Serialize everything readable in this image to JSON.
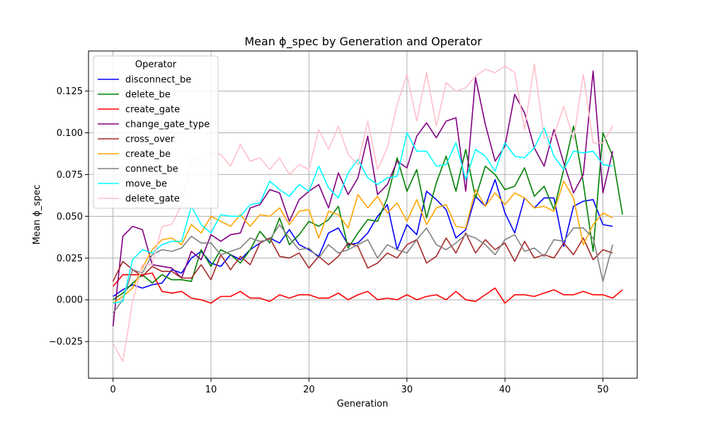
{
  "chart_data": {
    "type": "line",
    "title": "Mean ϕ_spec by Generation and Operator",
    "xlabel": "Generation",
    "ylabel": "Mean ϕ_spec",
    "xlim": [
      -2.5,
      53.5
    ],
    "ylim": [
      -0.047,
      0.149
    ],
    "xticks": [
      0,
      10,
      20,
      30,
      40,
      50
    ],
    "xtick_labels": [
      "0",
      "10",
      "20",
      "30",
      "40",
      "50"
    ],
    "yticks": [
      -0.025,
      0.0,
      0.025,
      0.05,
      0.075,
      0.1,
      0.125
    ],
    "ytick_labels": [
      "−0.025",
      "0.000",
      "0.025",
      "0.050",
      "0.075",
      "0.100",
      "0.125"
    ],
    "grid": true,
    "legend": {
      "title": "Operator",
      "position": "top-left"
    },
    "series": [
      {
        "name": "disconnect_be",
        "color": "#0000ff",
        "values": [
          0.002,
          0.006,
          0.009,
          0.007,
          0.009,
          0.01,
          0.018,
          0.016,
          0.025,
          0.029,
          0.022,
          0.02,
          0.027,
          0.024,
          0.03,
          0.034,
          0.037,
          0.034,
          0.042,
          0.033,
          0.03,
          0.026,
          0.04,
          0.043,
          0.033,
          0.034,
          0.04,
          0.05,
          0.057,
          0.03,
          0.045,
          0.039,
          0.065,
          0.06,
          0.054,
          0.037,
          0.042,
          0.062,
          0.056,
          0.072,
          0.052,
          0.04,
          0.061,
          0.055,
          0.061,
          0.061,
          0.032,
          0.056,
          0.059,
          0.06,
          0.045,
          0.044
        ]
      },
      {
        "name": "delete_be",
        "color": "#008000",
        "values": [
          0.0,
          0.004,
          0.01,
          0.015,
          0.01,
          0.015,
          0.012,
          0.012,
          0.011,
          0.03,
          0.02,
          0.03,
          0.027,
          0.022,
          0.03,
          0.041,
          0.034,
          0.049,
          0.033,
          0.039,
          0.047,
          0.044,
          0.048,
          0.056,
          0.031,
          0.04,
          0.048,
          0.047,
          0.061,
          0.085,
          0.065,
          0.078,
          0.049,
          0.07,
          0.086,
          0.065,
          0.09,
          0.061,
          0.08,
          0.075,
          0.066,
          0.068,
          0.079,
          0.062,
          0.068,
          0.054,
          0.078,
          0.104,
          0.07,
          0.029,
          0.1,
          0.086,
          0.051
        ]
      },
      {
        "name": "create_gate",
        "color": "#ff0000",
        "values": [
          0.008,
          0.015,
          0.015,
          0.015,
          0.016,
          0.005,
          0.004,
          0.005,
          0.001,
          0.0,
          -0.002,
          0.002,
          0.002,
          0.005,
          0.001,
          0.001,
          -0.001,
          0.003,
          0.001,
          0.003,
          0.003,
          0.001,
          0.001,
          0.004,
          0.0,
          0.003,
          0.005,
          0.0,
          0.001,
          0.0,
          0.003,
          0.0,
          0.002,
          0.003,
          0.0,
          0.005,
          0.0,
          -0.001,
          0.003,
          0.007,
          -0.002,
          0.003,
          0.003,
          0.002,
          0.004,
          0.006,
          0.003,
          0.003,
          0.005,
          0.003,
          0.003,
          0.001,
          0.006
        ]
      },
      {
        "name": "change_gate_type",
        "color": "#800080",
        "values": [
          -0.016,
          0.038,
          0.044,
          0.042,
          0.021,
          0.02,
          0.019,
          0.013,
          0.029,
          0.024,
          0.039,
          0.035,
          0.039,
          0.04,
          0.055,
          0.057,
          0.066,
          0.064,
          0.047,
          0.06,
          0.065,
          0.069,
          0.055,
          0.076,
          0.063,
          0.073,
          0.098,
          0.063,
          0.069,
          0.083,
          0.079,
          0.098,
          0.106,
          0.097,
          0.107,
          0.109,
          0.065,
          0.133,
          0.105,
          0.083,
          0.092,
          0.123,
          0.112,
          0.091,
          0.08,
          0.102,
          0.082,
          0.064,
          0.075,
          0.137,
          0.064,
          0.089
        ]
      },
      {
        "name": "cross_over",
        "color": "#a52a2a",
        "values": [
          0.011,
          0.023,
          0.018,
          0.014,
          0.02,
          0.017,
          0.017,
          0.013,
          0.013,
          0.021,
          0.012,
          0.027,
          0.018,
          0.026,
          0.021,
          0.034,
          0.037,
          0.026,
          0.025,
          0.028,
          0.019,
          0.026,
          0.021,
          0.026,
          0.034,
          0.032,
          0.019,
          0.022,
          0.028,
          0.025,
          0.033,
          0.036,
          0.022,
          0.026,
          0.037,
          0.028,
          0.04,
          0.028,
          0.036,
          0.03,
          0.034,
          0.023,
          0.035,
          0.025,
          0.027,
          0.025,
          0.034,
          0.027,
          0.037,
          0.024,
          0.03,
          0.028
        ]
      },
      {
        "name": "create_be",
        "color": "#ffa500",
        "values": [
          -0.002,
          0.002,
          0.007,
          0.019,
          0.03,
          0.036,
          0.037,
          0.033,
          0.045,
          0.04,
          0.05,
          0.047,
          0.044,
          0.051,
          0.044,
          0.051,
          0.05,
          0.055,
          0.045,
          0.053,
          0.054,
          0.037,
          0.053,
          0.051,
          0.043,
          0.063,
          0.055,
          0.062,
          0.052,
          0.058,
          0.047,
          0.06,
          0.045,
          0.055,
          0.057,
          0.044,
          0.043,
          0.066,
          0.056,
          0.064,
          0.057,
          0.064,
          0.061,
          0.055,
          0.056,
          0.053,
          0.071,
          0.061,
          0.033,
          0.045,
          0.052,
          0.049
        ]
      },
      {
        "name": "connect_be",
        "color": "#808080",
        "values": [
          -0.008,
          0.0,
          0.018,
          0.016,
          0.027,
          0.03,
          0.029,
          0.031,
          0.038,
          0.034,
          0.034,
          0.027,
          0.029,
          0.031,
          0.037,
          0.035,
          0.036,
          0.045,
          0.037,
          0.03,
          0.031,
          0.025,
          0.033,
          0.028,
          0.03,
          0.033,
          0.036,
          0.025,
          0.033,
          0.03,
          0.028,
          0.036,
          0.043,
          0.033,
          0.03,
          0.034,
          0.039,
          0.037,
          0.033,
          0.027,
          0.036,
          0.039,
          0.029,
          0.031,
          0.026,
          0.036,
          0.035,
          0.043,
          0.043,
          0.037,
          0.011,
          0.033
        ]
      },
      {
        "name": "move_be",
        "color": "#00ffff",
        "values": [
          -0.002,
          -0.001,
          0.024,
          0.03,
          0.028,
          0.033,
          0.035,
          0.035,
          0.056,
          0.045,
          0.04,
          0.051,
          0.05,
          0.05,
          0.057,
          0.058,
          0.071,
          0.066,
          0.062,
          0.069,
          0.065,
          0.08,
          0.067,
          0.061,
          0.076,
          0.084,
          0.073,
          0.069,
          0.073,
          0.074,
          0.1,
          0.089,
          0.089,
          0.08,
          0.081,
          0.094,
          0.072,
          0.09,
          0.086,
          0.077,
          0.094,
          0.086,
          0.085,
          0.091,
          0.103,
          0.086,
          0.078,
          0.089,
          0.088,
          0.089,
          0.081,
          0.08
        ]
      },
      {
        "name": "delete_gate",
        "color": "#ffc0cb",
        "values": [
          -0.026,
          -0.037,
          -0.001,
          0.021,
          0.021,
          0.044,
          0.045,
          0.057,
          0.085,
          0.083,
          0.088,
          0.087,
          0.08,
          0.093,
          0.083,
          0.085,
          0.078,
          0.085,
          0.075,
          0.081,
          0.078,
          0.102,
          0.09,
          0.104,
          0.087,
          0.081,
          0.107,
          0.078,
          0.091,
          0.117,
          0.135,
          0.107,
          0.136,
          0.104,
          0.13,
          0.125,
          0.127,
          0.134,
          0.138,
          0.136,
          0.14,
          0.136,
          0.102,
          0.141,
          0.097,
          0.098,
          0.116,
          0.096,
          0.135,
          0.094,
          0.094,
          0.104
        ]
      }
    ]
  }
}
